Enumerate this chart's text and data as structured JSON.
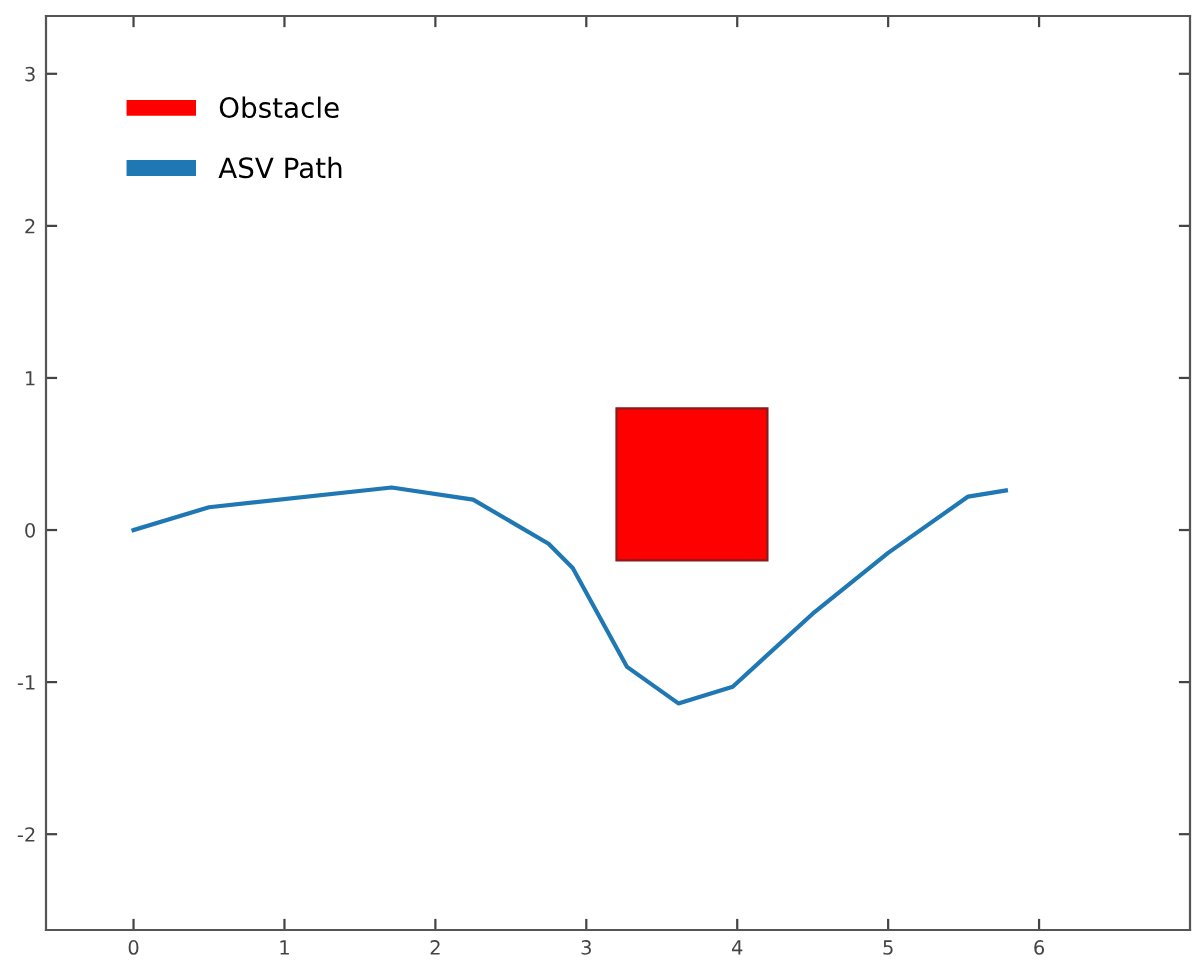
{
  "chart_data": {
    "type": "line",
    "series": [
      {
        "name": "Obstacle",
        "type": "bar",
        "color": "#ff0000",
        "x": [
          3.7
        ],
        "base": [
          -0.2
        ],
        "values": [
          1.0
        ]
      },
      {
        "name": "ASV Path",
        "color": "#1f77b4",
        "x": [
          0,
          0.5,
          1.71,
          2.25,
          2.75,
          2.91,
          3.27,
          3.61,
          3.97,
          4.5,
          5.0,
          5.53,
          5.78
        ],
        "values": [
          0,
          0.15,
          0.28,
          0.2,
          -0.09,
          -0.25,
          -0.9,
          -1.14,
          -1.03,
          -0.55,
          -0.15,
          0.22,
          0.26
        ]
      }
    ],
    "xlim": [
      -0.58,
      7.0
    ],
    "ylim": [
      -2.63,
      3.38
    ],
    "xticks": [
      0,
      1,
      2,
      3,
      4,
      5,
      6
    ],
    "yticks": [
      -2,
      -1,
      0,
      1,
      2,
      3
    ],
    "grid": false,
    "legend": "top left"
  }
}
